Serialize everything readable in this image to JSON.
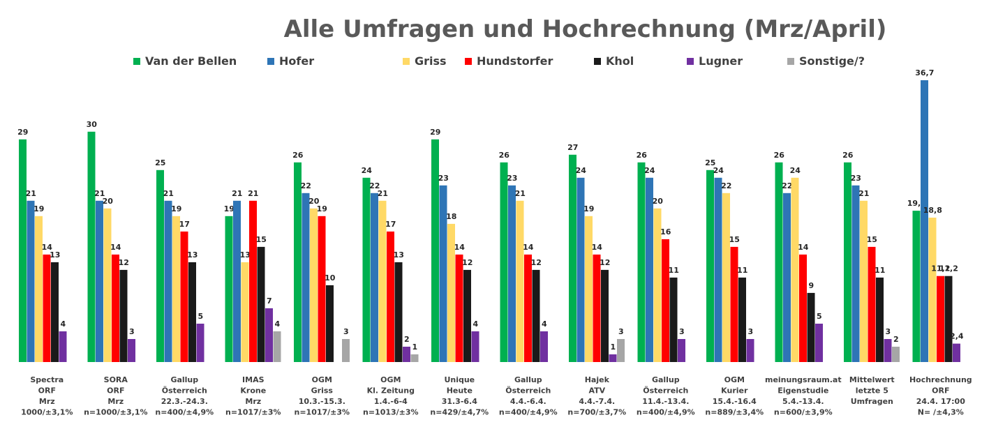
{
  "chart_data": {
    "type": "bar",
    "title": "Alle Umfragen und Hochrechnung (Mrz/April)",
    "ylim": [
      0,
      38
    ],
    "grid": false,
    "legend_position": "top",
    "categories": [
      [
        "Spectra",
        "ORF",
        "Mrz",
        "1000/±3,1%"
      ],
      [
        "SORA",
        "ORF",
        "Mrz",
        "n=1000/±3,1%"
      ],
      [
        "Gallup",
        "Österreich",
        "22.3.-24.3.",
        "n=400/±4,9%"
      ],
      [
        "IMAS",
        "Krone",
        "Mrz",
        "n=1017/±3%"
      ],
      [
        "OGM",
        "Griss",
        "10.3.-15.3.",
        "n=1017/±3%"
      ],
      [
        "OGM",
        "Kl. Zeitung",
        "1.4.-6-4",
        "n=1013/±3%"
      ],
      [
        "Unique",
        "Heute",
        "31.3-6.4",
        "n=429/±4,7%"
      ],
      [
        "Gallup",
        "Österreich",
        "4.4.-6.4.",
        "n=400/±4,9%"
      ],
      [
        "Hajek",
        "ATV",
        "4.4.-7.4.",
        "n=700/±3,7%"
      ],
      [
        "Gallup",
        "Österreich",
        "11.4.-13.4.",
        "n=400/±4,9%"
      ],
      [
        "OGM",
        "Kurier",
        "15.4.-16.4",
        "n=889/±3,4%"
      ],
      [
        "meinungsraum.at",
        "Eigenstudie",
        "5.4.-13.4.",
        "n=600/±3,9%"
      ],
      [
        "Mittelwert",
        "letzte 5",
        "Umfragen",
        ""
      ],
      [
        "Hochrechnung",
        "ORF",
        "24.4. 17:00",
        "N=   /±4,3%"
      ]
    ],
    "series": [
      {
        "name": "Van der Bellen",
        "color": "#00b050",
        "values": [
          29,
          30,
          25,
          19,
          26,
          24,
          29,
          26,
          27,
          26,
          25,
          26,
          26,
          19.7
        ],
        "labels": [
          "29",
          "30",
          "25",
          "19",
          "26",
          "24",
          "29",
          "26",
          "27",
          "26",
          "25",
          "26",
          "26",
          "19,7"
        ]
      },
      {
        "name": "Hofer",
        "color": "#2e75b6",
        "values": [
          21,
          21,
          21,
          21,
          22,
          22,
          23,
          23,
          24,
          24,
          24,
          22,
          23,
          36.7
        ],
        "labels": [
          "21",
          "21",
          "21",
          "21",
          "22",
          "22",
          "23",
          "23",
          "24",
          "24",
          "24",
          "22",
          "23",
          "36,7"
        ]
      },
      {
        "name": "Griss",
        "color": "#ffd966",
        "values": [
          19,
          20,
          19,
          13,
          20,
          21,
          18,
          21,
          19,
          20,
          22,
          24,
          21,
          18.8
        ],
        "labels": [
          "19",
          "20",
          "19",
          "13",
          "20",
          "21",
          "18",
          "21",
          "19",
          "20",
          "22",
          "24",
          "21",
          "18,8"
        ]
      },
      {
        "name": "Hundstorfer",
        "color": "#ff0000",
        "values": [
          14,
          14,
          17,
          21,
          19,
          17,
          14,
          14,
          14,
          16,
          15,
          14,
          15,
          11.2
        ],
        "labels": [
          "14",
          "14",
          "17",
          "21",
          "19",
          "17",
          "14",
          "14",
          "14",
          "16",
          "15",
          "14",
          "15",
          "11,2"
        ]
      },
      {
        "name": "Khol",
        "color": "#1a1a1a",
        "values": [
          13,
          12,
          13,
          15,
          10,
          13,
          12,
          12,
          12,
          11,
          11,
          9,
          11,
          11.2
        ],
        "labels": [
          "13",
          "12",
          "13",
          "15",
          "10",
          "13",
          "12",
          "12",
          "12",
          "11",
          "11",
          "9",
          "11",
          "11,2"
        ]
      },
      {
        "name": "Lugner",
        "color": "#7030a0",
        "values": [
          4,
          3,
          5,
          7,
          null,
          2,
          4,
          4,
          1,
          3,
          3,
          5,
          3,
          2.4
        ],
        "labels": [
          "4",
          "3",
          "5",
          "7",
          "",
          "2",
          "4",
          "4",
          "1",
          "3",
          "3",
          "5",
          "3",
          "2,4"
        ]
      },
      {
        "name": "Sonstige/?",
        "color": "#a6a6a6",
        "values": [
          null,
          null,
          null,
          4,
          3,
          1,
          null,
          null,
          3,
          null,
          null,
          null,
          2,
          null
        ],
        "labels": [
          "",
          "",
          "",
          "4",
          "3",
          "1",
          "",
          "",
          "3",
          "",
          "",
          "",
          "2",
          ""
        ]
      }
    ]
  }
}
